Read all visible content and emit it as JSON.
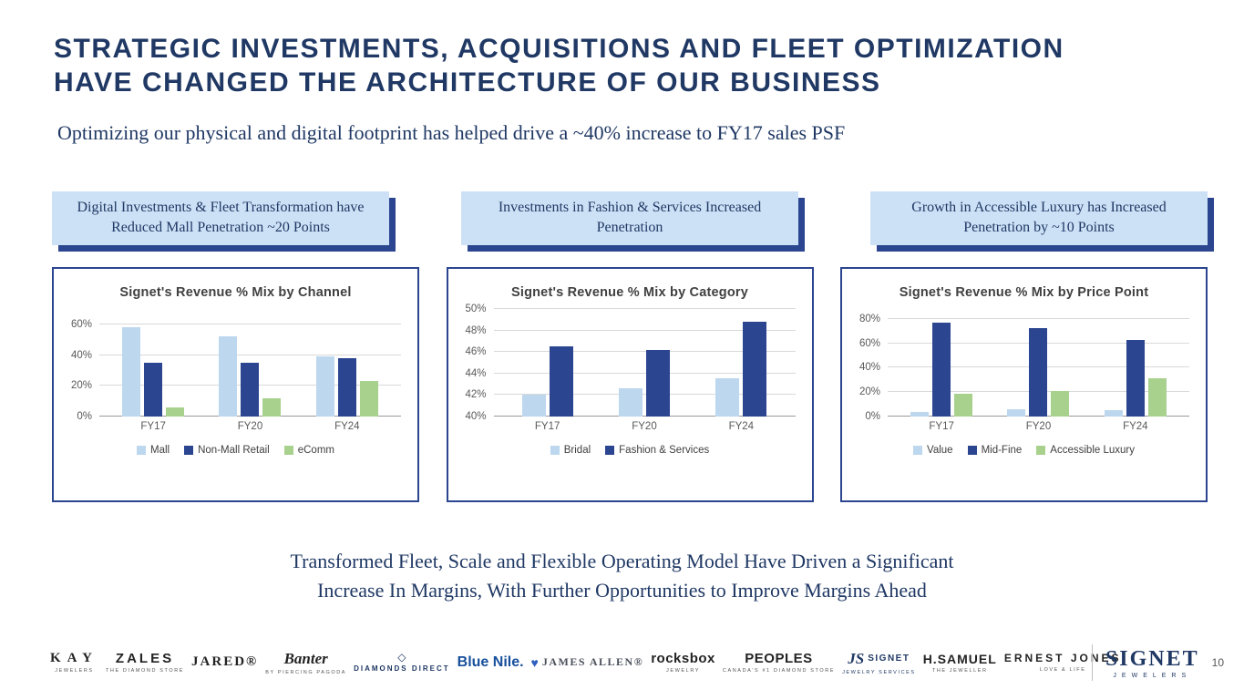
{
  "slide": {
    "title_lines": [
      "STRATEGIC INVESTMENTS, ACQUISITIONS AND FLEET OPTIMIZATION",
      "HAVE CHANGED THE ARCHITECTURE OF OUR BUSINESS"
    ],
    "subtitle": "Optimizing our physical and digital footprint has helped drive a ~40% increase to FY17 sales PSF",
    "callouts": [
      "Digital Investments & Fleet Transformation have Reduced Mall Penetration ~20 Points",
      "Investments in Fashion & Services Increased Penetration",
      "Growth in Accessible Luxury has Increased Penetration by ~10 Points"
    ],
    "takeaway_lines": [
      "Transformed Fleet, Scale and Flexible Operating Model Have Driven a Significant",
      "Increase In Margins, With Further Opportunities to Improve Margins Ahead"
    ]
  },
  "colors": {
    "title_navy": "#203864",
    "panel_border": "#2B4590",
    "callout_bg": "#CDE1F6",
    "callout_shadow": "#2B4590",
    "light_blue_bar": "#BDD7EE",
    "dark_blue_bar": "#2B4590",
    "green_bar": "#A9D18E"
  },
  "chart_data": [
    {
      "type": "bar",
      "title": "Signet's Revenue % Mix by Channel",
      "categories": [
        "FY17",
        "FY20",
        "FY24"
      ],
      "series": [
        {
          "name": "Mall",
          "color": "#BDD7EE",
          "values": [
            58,
            52,
            39
          ]
        },
        {
          "name": "Non-Mall Retail",
          "color": "#2B4590",
          "values": [
            35,
            35,
            38
          ]
        },
        {
          "name": "eComm",
          "color": "#A9D18E",
          "values": [
            6,
            12,
            23
          ]
        }
      ],
      "ylim": [
        0,
        70
      ],
      "yticks": [
        0,
        20,
        40,
        60
      ],
      "unit": "%",
      "grid": true,
      "legend_position": "bottom"
    },
    {
      "type": "bar",
      "title": "Signet's Revenue % Mix by Category",
      "categories": [
        "FY17",
        "FY20",
        "FY24"
      ],
      "series": [
        {
          "name": "Bridal",
          "color": "#BDD7EE",
          "values": [
            42,
            42.6,
            43.6
          ]
        },
        {
          "name": "Fashion & Services",
          "color": "#2B4590",
          "values": [
            46.5,
            46.2,
            48.8
          ]
        }
      ],
      "ylim": [
        40,
        50
      ],
      "yticks": [
        40,
        42,
        44,
        46,
        48,
        50
      ],
      "unit": "%",
      "grid": true,
      "legend_position": "bottom"
    },
    {
      "type": "bar",
      "title": "Signet's Revenue % Mix by Price Point",
      "categories": [
        "FY17",
        "FY20",
        "FY24"
      ],
      "series": [
        {
          "name": "Value",
          "color": "#BDD7EE",
          "values": [
            4,
            6,
            5
          ]
        },
        {
          "name": "Mid-Fine",
          "color": "#2B4590",
          "values": [
            77,
            72,
            63
          ]
        },
        {
          "name": "Accessible Luxury",
          "color": "#A9D18E",
          "values": [
            19,
            21,
            31
          ]
        }
      ],
      "ylim": [
        0,
        88
      ],
      "yticks": [
        0,
        20,
        40,
        60,
        80
      ],
      "unit": "%",
      "grid": true,
      "legend_position": "bottom"
    }
  ],
  "footer": {
    "brands": [
      {
        "key": "kay",
        "name": "KAY",
        "sub": "JEWELERS"
      },
      {
        "key": "zales",
        "name": "ZALES",
        "sub": "THE DIAMOND STORE"
      },
      {
        "key": "jared",
        "name": "JARED®",
        "sub": ""
      },
      {
        "key": "banter",
        "name": "Banter",
        "sub": "BY PIERCING PAGODA"
      },
      {
        "key": "diamonds-direct",
        "name": "DIAMONDS DIRECT",
        "sub": "",
        "icon": "diamond"
      },
      {
        "key": "blue-nile",
        "name": "Blue Nile.",
        "sub": ""
      },
      {
        "key": "james-allen",
        "name": "JAMES ALLEN®",
        "sub": "",
        "icon": "heart"
      },
      {
        "key": "rocksbox",
        "name": "rocksbox",
        "sub": "JEWELRY"
      },
      {
        "key": "peoples",
        "name": "PEOPLES",
        "sub": "CANADA'S #1 DIAMOND STORE"
      },
      {
        "key": "signet-js",
        "name": "SIGNET",
        "sub": "JEWELRY SERVICES",
        "icon": "js"
      },
      {
        "key": "h-samuel",
        "name": "H.SAMUEL",
        "sub": "THE JEWELLER"
      },
      {
        "key": "ernest-jones",
        "name": "ERNEST JONES",
        "sub": "LOVE & LIFE"
      }
    ],
    "logo": {
      "name": "SIGNET",
      "sub": "JEWELERS"
    },
    "page_number": "10"
  }
}
